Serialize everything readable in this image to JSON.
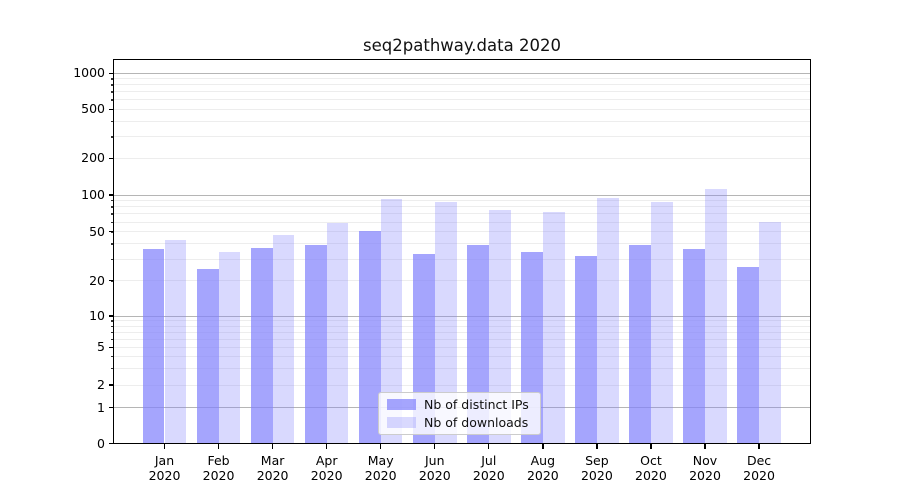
{
  "title": "seq2pathway.data 2020",
  "chart_data": {
    "type": "bar",
    "title": "seq2pathway.data 2020",
    "categories": [
      "Jan 2020",
      "Feb 2020",
      "Mar 2020",
      "Apr 2020",
      "May 2020",
      "Jun 2020",
      "Jul 2020",
      "Aug 2020",
      "Sep 2020",
      "Oct 2020",
      "Nov 2020",
      "Dec 2020"
    ],
    "months": [
      "Jan",
      "Feb",
      "Mar",
      "Apr",
      "May",
      "Jun",
      "Jul",
      "Aug",
      "Sep",
      "Oct",
      "Nov",
      "Dec"
    ],
    "year_label": "2020",
    "series": [
      {
        "name": "Nb of distinct IPs",
        "color": "rgba(130,130,252,0.72)",
        "values": [
          36,
          25,
          37,
          39,
          51,
          33,
          39,
          34,
          32,
          39,
          36,
          26
        ]
      },
      {
        "name": "Nb of downloads",
        "color": "rgba(130,130,252,0.30)",
        "values": [
          43,
          34,
          47,
          59,
          92,
          88,
          75,
          72,
          95,
          88,
          113,
          60
        ]
      }
    ],
    "xlabel": "",
    "ylabel": "",
    "y_scale": "symlog",
    "y_ticks": [
      0,
      1,
      2,
      5,
      10,
      20,
      50,
      100,
      200,
      500,
      1000
    ],
    "ylim": [
      0,
      1330
    ],
    "grid": true,
    "grid_major_at": [
      1,
      10,
      100,
      1000
    ],
    "legend_position": "lower center"
  },
  "legend": {
    "items": [
      {
        "label": "Nb of distinct IPs",
        "color": "rgba(130,130,252,0.72)"
      },
      {
        "label": "Nb of downloads",
        "color": "rgba(130,130,252,0.30)"
      }
    ]
  },
  "colors": {
    "bar_distinct_ips": "rgba(130,130,252,0.72)",
    "bar_downloads": "rgba(130,130,252,0.30)",
    "grid_minor": "#ededed",
    "grid_major": "#b5b5b5",
    "axis": "#000000",
    "background": "#ffffff"
  }
}
